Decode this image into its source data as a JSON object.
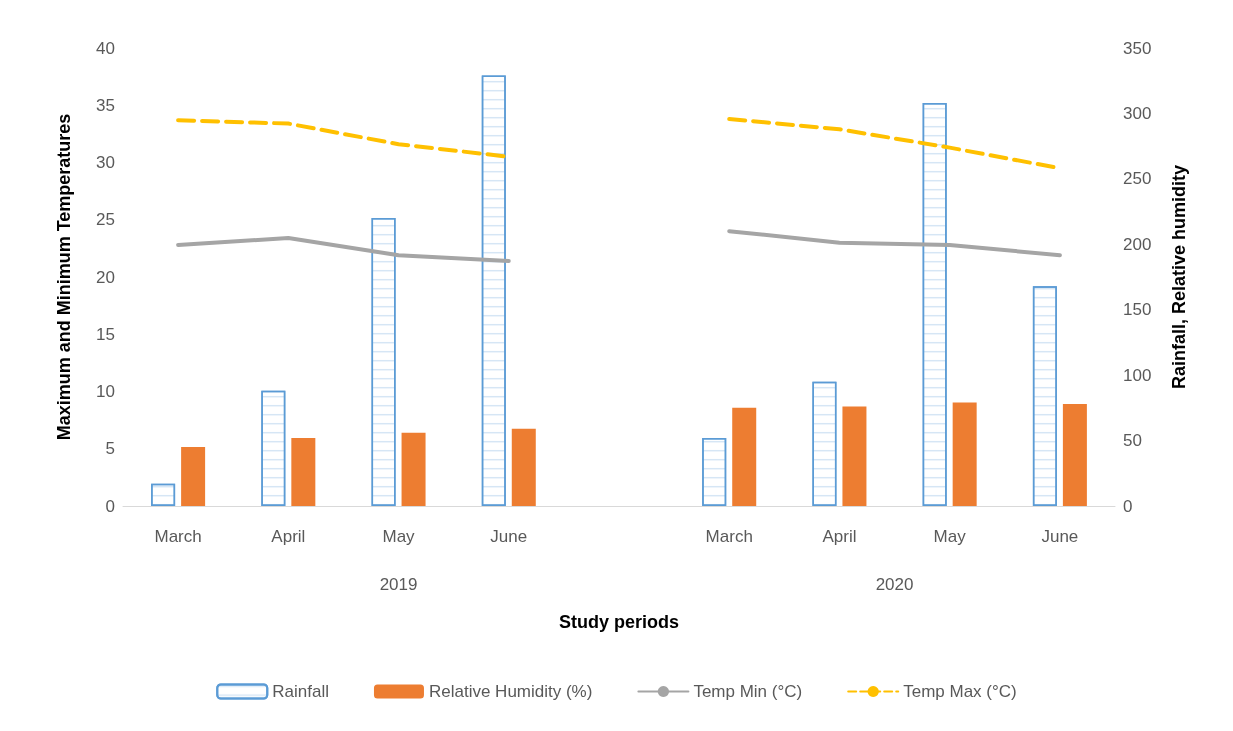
{
  "chart_data": {
    "type": "bar",
    "categories": [
      "March",
      "April",
      "May",
      "June",
      null,
      "March",
      "April",
      "May",
      "June"
    ],
    "xlabel": "Study periods",
    "ylabel": "Maximum and Minimum Temperatures",
    "y2label": "Rainfall, Relative humidity",
    "annotations": [
      "2019",
      "2020"
    ],
    "ylim": [
      0,
      40
    ],
    "yticks": [
      0,
      5,
      10,
      15,
      20,
      25,
      30,
      35,
      40
    ],
    "y2lim": [
      0,
      350
    ],
    "y2ticks": [
      0,
      50,
      100,
      150,
      200,
      250,
      300,
      350
    ],
    "grid": false,
    "legend": "bottom",
    "marker": "none",
    "series": [
      {
        "name": "Rainfall",
        "axis": "y2",
        "color": "#5b9bd5",
        "values": [
          17,
          88,
          220,
          329,
          null,
          52,
          95,
          308,
          168
        ]
      },
      {
        "name": "Relative Humidity (%)",
        "axis": "y2",
        "color": "#ed7d31",
        "values": [
          45,
          52,
          56,
          59,
          null,
          75,
          76,
          79,
          78
        ]
      },
      {
        "name": "Temp Min (°C)",
        "type": "line",
        "color": "#a5a5a5",
        "line_style": "solid",
        "values": [
          22.8,
          23.4,
          21.9,
          21.4,
          null,
          24.0,
          23.0,
          22.8,
          21.9
        ]
      },
      {
        "name": "Temp Max (°C)",
        "type": "line",
        "color": "#ffc000",
        "line_style": "dashed",
        "values": [
          33.7,
          33.4,
          31.6,
          30.5,
          null,
          33.8,
          32.9,
          31.3,
          29.5
        ]
      }
    ]
  }
}
